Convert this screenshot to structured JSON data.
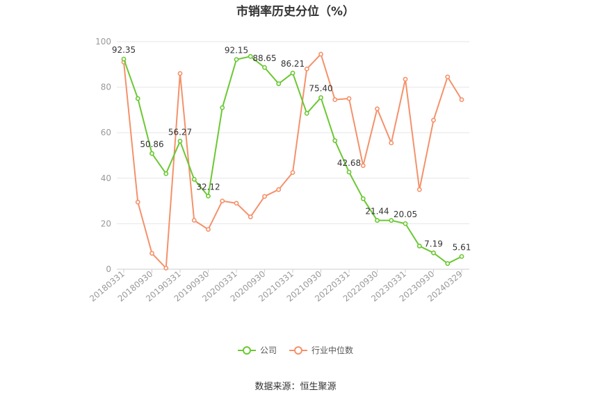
{
  "chart_data": {
    "type": "line",
    "title": "市销率历史分位（%）",
    "categories": [
      "20180331",
      "20180630",
      "20180930",
      "20181231",
      "20190331",
      "20190630",
      "20190930",
      "20191231",
      "20200331",
      "20200630",
      "20200930",
      "20201231",
      "20210331",
      "20210630",
      "20210930",
      "20211231",
      "20220331",
      "20220630",
      "20220930",
      "20221231",
      "20230331",
      "20230630",
      "20230930",
      "20231231",
      "20240329"
    ],
    "x_tick_labels": [
      "20180331",
      "20180930",
      "20190331",
      "20190930",
      "20200331",
      "20200930",
      "20210331",
      "20210930",
      "20220331",
      "20220930",
      "20230331",
      "20230930",
      "20240329"
    ],
    "y_ticks": [
      0,
      20,
      40,
      60,
      80,
      100
    ],
    "ylim": [
      0,
      100
    ],
    "grid": true,
    "legend_position": "bottom",
    "series": [
      {
        "name": "公司",
        "color": "#6ac832",
        "values": [
          92.35,
          75,
          50.86,
          42,
          56.27,
          39.5,
          32.12,
          71,
          92.15,
          93.5,
          88.65,
          81.5,
          86.21,
          68.5,
          75.4,
          56.5,
          42.68,
          31,
          21.44,
          21.44,
          20.05,
          10.2,
          7.19,
          2.5,
          5.61
        ],
        "labels": {
          "0": "92.35",
          "2": "50.86",
          "4": "56.27",
          "6": "32.12",
          "8": "92.15",
          "10": "88.65",
          "12": "86.21",
          "14": "75.40",
          "16": "42.68",
          "18": "21.44",
          "20": "20.05",
          "22": "7.19",
          "24": "5.61"
        }
      },
      {
        "name": "行业中位数",
        "color": "#f4916a",
        "values": [
          91,
          29.5,
          7,
          0.5,
          86,
          21.5,
          17.5,
          30,
          29,
          23,
          32,
          35,
          42.5,
          88,
          94.5,
          74.5,
          75,
          45.5,
          70.5,
          55.5,
          83.5,
          35,
          65.5,
          84.5,
          74.5
        ]
      }
    ]
  },
  "legend": {
    "company": "公司",
    "industry": "行业中位数"
  },
  "source_text": "数据来源：恒生聚源"
}
